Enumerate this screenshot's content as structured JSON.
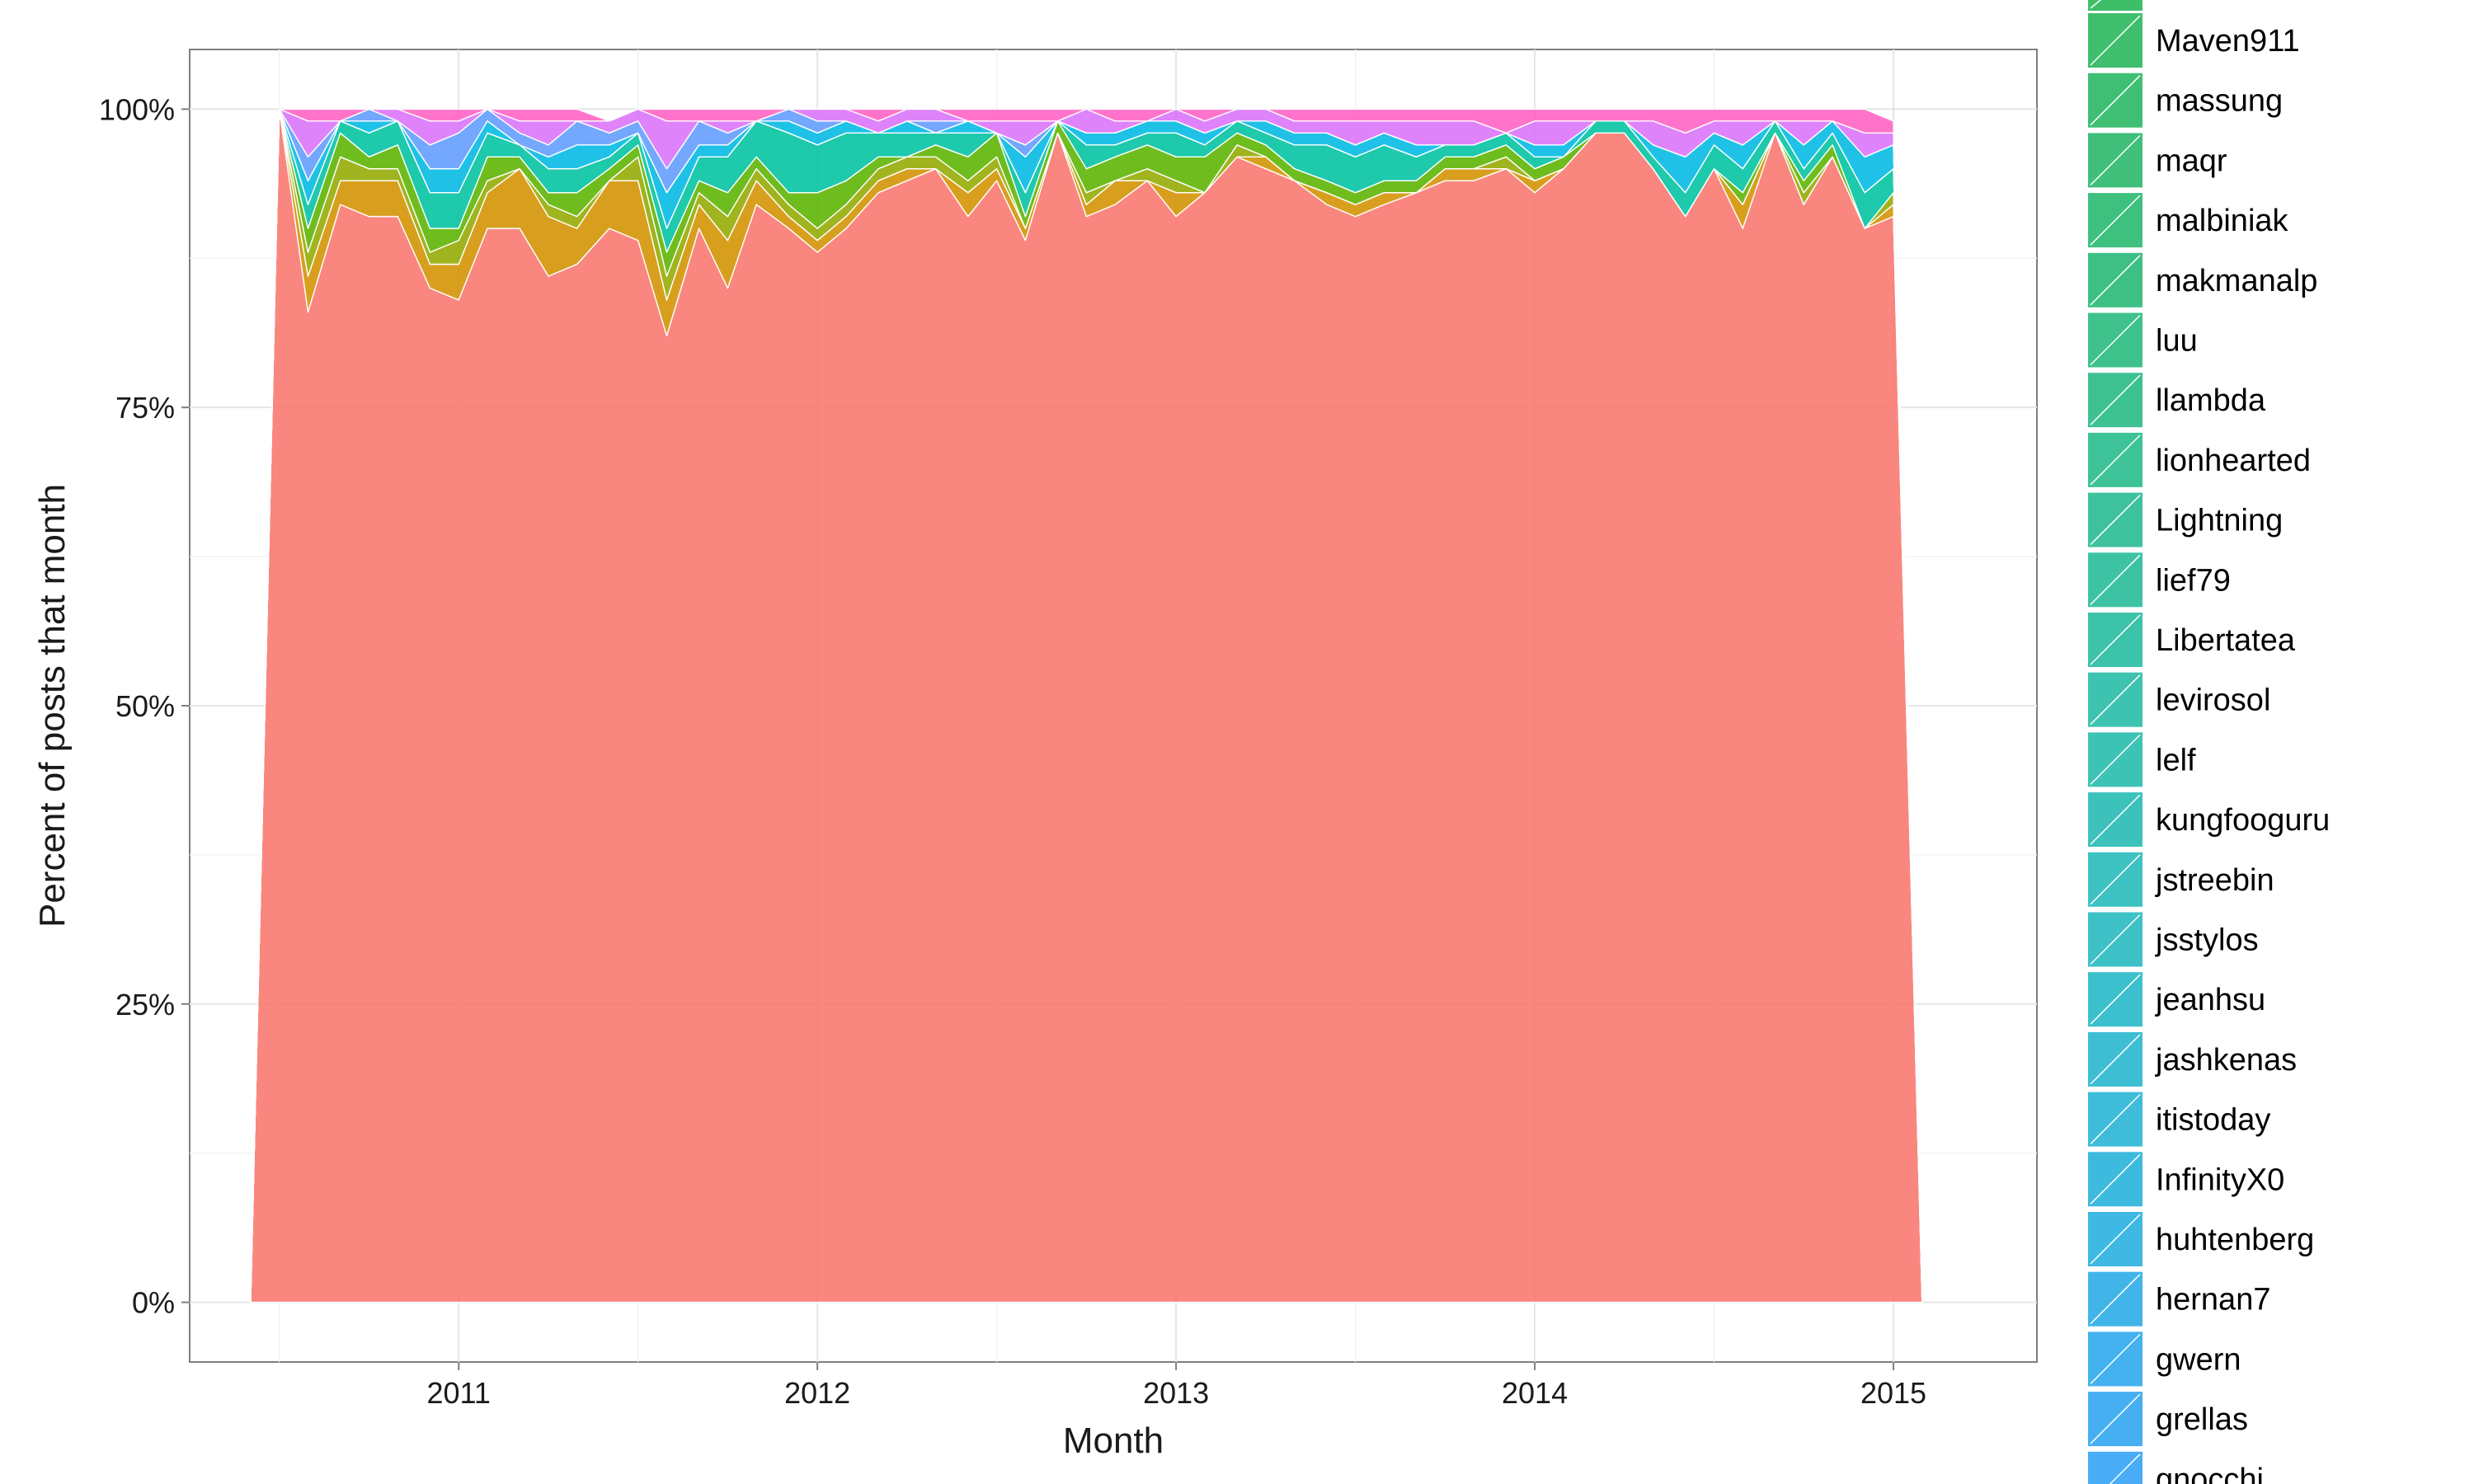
{
  "chart_data": {
    "type": "area",
    "stacking": "percent",
    "title": "",
    "xlabel": "Month",
    "ylabel": "Percent of posts that month",
    "x_ticks": [
      "2011",
      "2012",
      "2013",
      "2014",
      "2015"
    ],
    "y_ticks": [
      "0%",
      "25%",
      "50%",
      "75%",
      "100%"
    ],
    "xlim": [
      2010.25,
      2015.4
    ],
    "ylim": [
      -0.05,
      1.05
    ],
    "grid": true,
    "legend_position": "right",
    "x": [
      2010.42,
      2010.5,
      2010.58,
      2010.67,
      2010.75,
      2010.83,
      2010.92,
      2011.0,
      2011.08,
      2011.17,
      2011.25,
      2011.33,
      2011.42,
      2011.5,
      2011.58,
      2011.67,
      2011.75,
      2011.83,
      2011.92,
      2012.0,
      2012.08,
      2012.17,
      2012.25,
      2012.33,
      2012.42,
      2012.5,
      2012.58,
      2012.67,
      2012.75,
      2012.83,
      2012.92,
      2013.0,
      2013.08,
      2013.17,
      2013.25,
      2013.33,
      2013.42,
      2013.5,
      2013.58,
      2013.67,
      2013.75,
      2013.83,
      2013.92,
      2014.0,
      2014.08,
      2014.17,
      2014.25,
      2014.33,
      2014.42,
      2014.5,
      2014.58,
      2014.67,
      2014.75,
      2014.83,
      2014.92,
      2015.0,
      2015.08
    ],
    "series": [
      {
        "name": "",
        "color": "#F8766D",
        "values": [
          0.0,
          1.0,
          0.83,
          0.92,
          0.91,
          0.91,
          0.85,
          0.84,
          0.9,
          0.9,
          0.86,
          0.87,
          0.9,
          0.89,
          0.81,
          0.9,
          0.85,
          0.92,
          0.9,
          0.88,
          0.9,
          0.93,
          0.94,
          0.95,
          0.91,
          0.94,
          0.89,
          0.98,
          0.91,
          0.92,
          0.94,
          0.91,
          0.93,
          0.96,
          0.95,
          0.94,
          0.92,
          0.91,
          0.92,
          0.93,
          0.94,
          0.94,
          0.95,
          0.93,
          0.95,
          0.98,
          0.98,
          0.95,
          0.91,
          0.95,
          0.9,
          0.98,
          0.92,
          0.96,
          0.9,
          0.91,
          0.0
        ]
      },
      {
        "name": "",
        "color": "#D39200",
        "values": [
          0.0,
          0.0,
          0.03,
          0.02,
          0.03,
          0.03,
          0.02,
          0.03,
          0.03,
          0.05,
          0.05,
          0.03,
          0.04,
          0.05,
          0.03,
          0.02,
          0.04,
          0.02,
          0.01,
          0.01,
          0.01,
          0.01,
          0.01,
          0.0,
          0.02,
          0.01,
          0.01,
          0.0,
          0.01,
          0.02,
          0.0,
          0.02,
          0.0,
          0.0,
          0.01,
          0.0,
          0.01,
          0.01,
          0.01,
          0.0,
          0.01,
          0.01,
          0.0,
          0.01,
          0.0,
          0.0,
          0.0,
          0.0,
          0.0,
          0.0,
          0.02,
          0.0,
          0.0,
          0.0,
          0.0,
          0.01,
          0.0
        ]
      },
      {
        "name": "",
        "color": "#93AA00",
        "values": [
          0.0,
          0.0,
          0.02,
          0.02,
          0.01,
          0.01,
          0.01,
          0.02,
          0.01,
          0.0,
          0.01,
          0.01,
          0.0,
          0.02,
          0.02,
          0.01,
          0.02,
          0.01,
          0.01,
          0.01,
          0.01,
          0.01,
          0.01,
          0.01,
          0.01,
          0.01,
          0.0,
          0.0,
          0.01,
          0.0,
          0.01,
          0.01,
          0.0,
          0.01,
          0.0,
          0.0,
          0.0,
          0.0,
          0.0,
          0.0,
          0.0,
          0.0,
          0.01,
          0.0,
          0.0,
          0.0,
          0.0,
          0.0,
          0.0,
          0.0,
          0.0,
          0.0,
          0.01,
          0.0,
          0.0,
          0.01,
          0.0
        ]
      },
      {
        "name": "",
        "color": "#5BB300",
        "values": [
          0.0,
          0.0,
          0.02,
          0.02,
          0.01,
          0.02,
          0.02,
          0.01,
          0.02,
          0.01,
          0.01,
          0.02,
          0.01,
          0.01,
          0.02,
          0.01,
          0.02,
          0.01,
          0.01,
          0.03,
          0.02,
          0.01,
          0.0,
          0.01,
          0.02,
          0.02,
          0.01,
          0.01,
          0.02,
          0.02,
          0.02,
          0.02,
          0.03,
          0.01,
          0.01,
          0.01,
          0.01,
          0.01,
          0.01,
          0.01,
          0.01,
          0.01,
          0.01,
          0.01,
          0.01,
          0.0,
          0.0,
          0.0,
          0.0,
          0.0,
          0.01,
          0.0,
          0.01,
          0.01,
          0.0,
          0.0,
          0.0
        ]
      },
      {
        "name": "",
        "color": "#00C19F",
        "values": [
          0.0,
          0.0,
          0.02,
          0.01,
          0.02,
          0.02,
          0.03,
          0.03,
          0.02,
          0.01,
          0.02,
          0.02,
          0.01,
          0.01,
          0.02,
          0.02,
          0.03,
          0.03,
          0.05,
          0.04,
          0.04,
          0.02,
          0.02,
          0.01,
          0.02,
          0.0,
          0.02,
          0.0,
          0.02,
          0.01,
          0.01,
          0.02,
          0.01,
          0.01,
          0.01,
          0.02,
          0.03,
          0.03,
          0.03,
          0.02,
          0.01,
          0.01,
          0.01,
          0.01,
          0.0,
          0.01,
          0.01,
          0.01,
          0.02,
          0.02,
          0.02,
          0.01,
          0.01,
          0.01,
          0.03,
          0.02,
          0.0
        ]
      },
      {
        "name": "",
        "color": "#00B9E3",
        "values": [
          0.0,
          0.0,
          0.02,
          0.0,
          0.01,
          0.0,
          0.02,
          0.02,
          0.01,
          0.0,
          0.01,
          0.02,
          0.01,
          0.0,
          0.03,
          0.01,
          0.01,
          0.0,
          0.01,
          0.01,
          0.01,
          0.0,
          0.01,
          0.0,
          0.01,
          0.0,
          0.03,
          0.0,
          0.01,
          0.01,
          0.01,
          0.01,
          0.01,
          0.0,
          0.01,
          0.01,
          0.01,
          0.01,
          0.01,
          0.01,
          0.0,
          0.0,
          0.0,
          0.01,
          0.01,
          0.0,
          0.0,
          0.01,
          0.03,
          0.01,
          0.02,
          0.0,
          0.02,
          0.01,
          0.03,
          0.02,
          0.0
        ]
      },
      {
        "name": "",
        "color": "#619CFF",
        "values": [
          0.0,
          0.0,
          0.02,
          0.0,
          0.01,
          0.0,
          0.02,
          0.03,
          0.01,
          0.01,
          0.01,
          0.02,
          0.01,
          0.01,
          0.02,
          0.02,
          0.01,
          0.0,
          0.01,
          0.01,
          0.0,
          0.0,
          0.0,
          0.01,
          0.0,
          0.0,
          0.01,
          0.0,
          0.0,
          0.0,
          0.0,
          0.0,
          0.0,
          0.0,
          0.0,
          0.0,
          0.0,
          0.0,
          0.0,
          0.0,
          0.0,
          0.0,
          0.0,
          0.0,
          0.0,
          0.0,
          0.0,
          0.0,
          0.0,
          0.0,
          0.0,
          0.0,
          0.0,
          0.0,
          0.0,
          0.0,
          0.0
        ]
      },
      {
        "name": "",
        "color": "#DB72FB",
        "values": [
          0.0,
          0.0,
          0.03,
          0.0,
          0.0,
          0.01,
          0.02,
          0.01,
          0.0,
          0.01,
          0.02,
          0.0,
          0.01,
          0.01,
          0.04,
          0.0,
          0.01,
          0.0,
          0.0,
          0.01,
          0.01,
          0.01,
          0.01,
          0.01,
          0.0,
          0.01,
          0.02,
          0.0,
          0.02,
          0.01,
          0.0,
          0.01,
          0.01,
          0.01,
          0.01,
          0.01,
          0.01,
          0.02,
          0.01,
          0.02,
          0.02,
          0.02,
          0.0,
          0.02,
          0.02,
          0.0,
          0.0,
          0.02,
          0.02,
          0.01,
          0.02,
          0.0,
          0.02,
          0.0,
          0.02,
          0.01,
          0.0
        ]
      },
      {
        "name": "",
        "color": "#FF61C3",
        "values": [
          0.0,
          0.0,
          0.01,
          0.01,
          0.0,
          0.0,
          0.01,
          0.01,
          0.0,
          0.01,
          0.01,
          0.01,
          0.0,
          0.0,
          0.01,
          0.01,
          0.01,
          0.01,
          0.0,
          0.0,
          0.0,
          0.01,
          0.0,
          0.0,
          0.01,
          0.01,
          0.01,
          0.01,
          0.0,
          0.01,
          0.01,
          0.0,
          0.01,
          0.0,
          0.0,
          0.01,
          0.01,
          0.01,
          0.01,
          0.01,
          0.01,
          0.01,
          0.02,
          0.01,
          0.01,
          0.01,
          0.01,
          0.01,
          0.02,
          0.01,
          0.01,
          0.01,
          0.01,
          0.01,
          0.02,
          0.01,
          0.0
        ]
      }
    ],
    "legend": [
      {
        "label": "Maven911",
        "color": "#3FBE6D"
      },
      {
        "label": "massung",
        "color": "#3FBF73"
      },
      {
        "label": "maqr",
        "color": "#3FBF79"
      },
      {
        "label": "malbiniak",
        "color": "#3EC07F"
      },
      {
        "label": "makmanalp",
        "color": "#3EC085"
      },
      {
        "label": "luu",
        "color": "#3EC18B"
      },
      {
        "label": "llambda",
        "color": "#3EC191"
      },
      {
        "label": "lionhearted",
        "color": "#3EC297"
      },
      {
        "label": "Lightning",
        "color": "#3EC29D"
      },
      {
        "label": "lief79",
        "color": "#3DC3A3"
      },
      {
        "label": "Libertatea",
        "color": "#3DC3A9"
      },
      {
        "label": "levirosol",
        "color": "#3DC3AF"
      },
      {
        "label": "lelf",
        "color": "#3DC3B5"
      },
      {
        "label": "kungfooguru",
        "color": "#3DC2BB"
      },
      {
        "label": "jstreebin",
        "color": "#3DC2C1"
      },
      {
        "label": "jsstylos",
        "color": "#3DC1C7"
      },
      {
        "label": "jeanhsu",
        "color": "#3DC0CD"
      },
      {
        "label": "jashkenas",
        "color": "#3DBED3"
      },
      {
        "label": "itistoday",
        "color": "#3EBCD9"
      },
      {
        "label": "InfinityX0",
        "color": "#3EBADF"
      },
      {
        "label": "huhtenberg",
        "color": "#3FB8E4"
      },
      {
        "label": "hernan7",
        "color": "#41B5E9"
      },
      {
        "label": "gwern",
        "color": "#43B2EE"
      },
      {
        "label": "grellas",
        "color": "#46AFF2"
      },
      {
        "label": "gnocchi",
        "color": "#49ACF6"
      }
    ]
  }
}
